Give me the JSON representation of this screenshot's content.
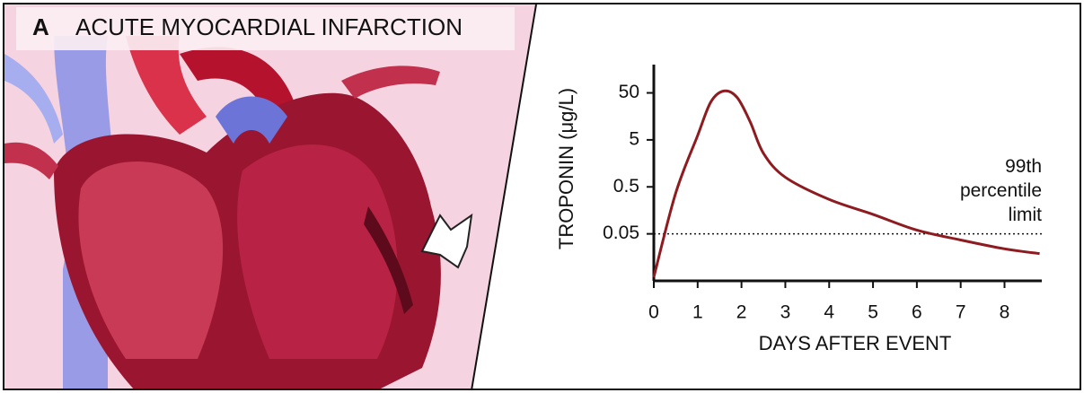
{
  "panel_label": "A",
  "chart_data": {
    "type": "line",
    "title": "ACUTE MYOCARDIAL INFARCTION",
    "x_label": "DAYS AFTER EVENT",
    "y_label": "TROPONIN (μg/L)",
    "log_y": true,
    "x": [
      0,
      0.5,
      1.0,
      1.3,
      1.6,
      1.9,
      2.2,
      2.5,
      3.0,
      4.0,
      5.0,
      6.0,
      7.0,
      8.0,
      8.8
    ],
    "series": [
      {
        "color": "#8e1b1f",
        "values": [
          0.006,
          0.37,
          6.2,
          32,
          55,
          40,
          12,
          2.6,
          0.8,
          0.27,
          0.13,
          0.06,
          0.037,
          0.024,
          0.019
        ]
      }
    ],
    "xlim": [
      0,
      8.85
    ],
    "xticks": [
      0,
      1,
      2,
      3,
      4,
      5,
      6,
      7,
      8
    ],
    "ylim": [
      0.005,
      200
    ],
    "yticks": [
      0.05,
      0.5,
      5,
      50
    ],
    "reference_line": {
      "value": 0.05,
      "label_lines": [
        "99th",
        "percentile",
        "limit"
      ]
    }
  }
}
